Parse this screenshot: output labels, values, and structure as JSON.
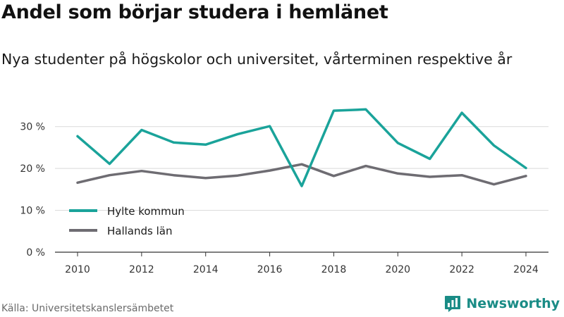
{
  "title": "Andel som börjar studera i hemlänet",
  "subtitle": "Nya studenter på högskolor och universitet, vårterminen respektive år",
  "source": "Källa: Universitetskanslersämbetet",
  "brand": {
    "name": "Newsworthy",
    "logo_icon": "newsworthy-logo-icon",
    "color": "#1a8c86"
  },
  "chart_data": {
    "type": "line",
    "x": [
      2010,
      2011,
      2012,
      2013,
      2014,
      2015,
      2016,
      2017,
      2018,
      2019,
      2020,
      2021,
      2022,
      2023,
      2024
    ],
    "x_ticks": [
      2010,
      2012,
      2014,
      2016,
      2018,
      2020,
      2022,
      2024
    ],
    "y_ticks": [
      0,
      10,
      20,
      30
    ],
    "y_tick_labels": [
      "0 %",
      "10 %",
      "20 %",
      "30 %"
    ],
    "ylim": [
      0,
      35
    ],
    "grid": true,
    "legend_position": "bottom-left",
    "series": [
      {
        "name": "Hylte kommun",
        "color": "#1aa39a",
        "values": [
          27.7,
          21.1,
          29.2,
          26.2,
          25.7,
          28.2,
          30.1,
          15.8,
          33.8,
          34.1,
          26.1,
          22.3,
          33.3,
          25.5,
          20.1
        ]
      },
      {
        "name": "Hallands län",
        "color": "#6e6c72",
        "values": [
          16.6,
          18.4,
          19.4,
          18.4,
          17.7,
          18.3,
          19.5,
          21.0,
          18.2,
          20.6,
          18.8,
          18.0,
          18.4,
          16.2,
          18.2
        ]
      }
    ]
  }
}
